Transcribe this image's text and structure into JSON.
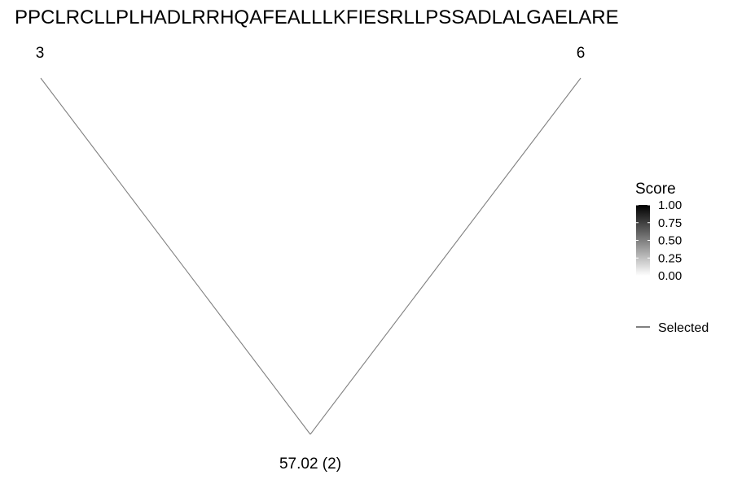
{
  "chart_data": {
    "type": "line",
    "title": "PPCLRCLLPLHADLRRHQAFEALLLKFIESRLLPSSADLALGAELARE",
    "vertices": [
      {
        "label": "3"
      },
      {
        "label": "57.02 (2)"
      },
      {
        "label": "6"
      }
    ],
    "edges": [
      {
        "from": 0,
        "to": 1,
        "selected": true
      },
      {
        "from": 1,
        "to": 2,
        "selected": true
      }
    ],
    "legend": {
      "placement": "right",
      "score": {
        "title": "Score",
        "ticks": [
          {
            "value": 1.0,
            "label": "1.00"
          },
          {
            "value": 0.75,
            "label": "0.75"
          },
          {
            "value": 0.5,
            "label": "0.50"
          },
          {
            "value": 0.25,
            "label": "0.25"
          },
          {
            "value": 0.0,
            "label": "0.00"
          }
        ],
        "range": [
          0,
          1
        ],
        "color_low": "#ffffff",
        "color_high": "#000000"
      },
      "line_key": {
        "label": "Selected",
        "color": "#000000"
      }
    },
    "edge_color": "#808080"
  }
}
